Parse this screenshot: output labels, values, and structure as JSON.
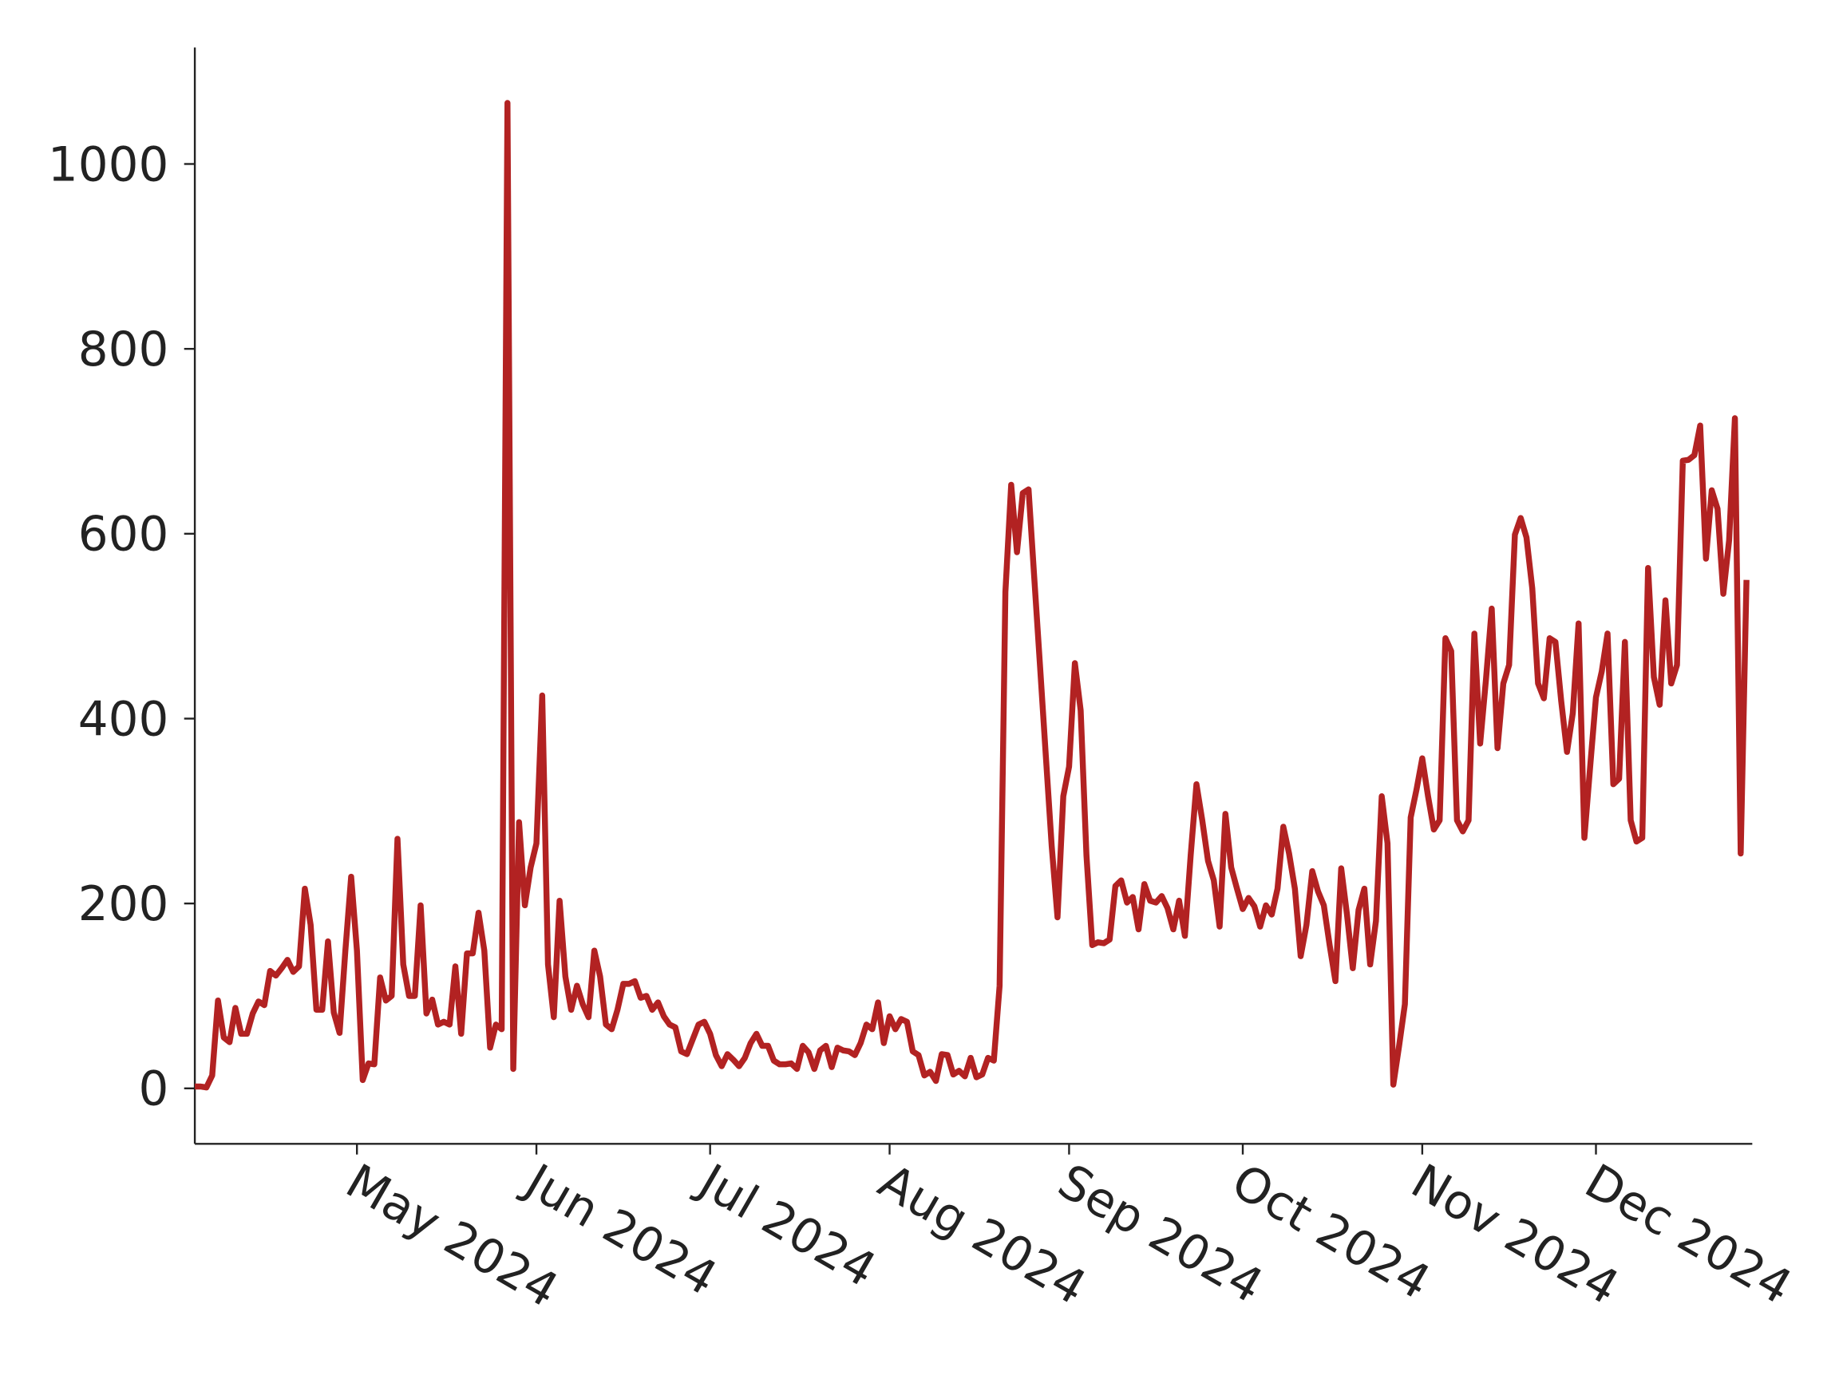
{
  "chart_data": {
    "type": "line",
    "x": [
      "2024-04-03",
      "2024-04-04",
      "2024-04-05",
      "2024-04-06",
      "2024-04-07",
      "2024-04-08",
      "2024-04-09",
      "2024-04-10",
      "2024-04-11",
      "2024-04-12",
      "2024-04-13",
      "2024-04-14",
      "2024-04-15",
      "2024-04-16",
      "2024-04-17",
      "2024-04-18",
      "2024-04-19",
      "2024-04-20",
      "2024-04-21",
      "2024-04-22",
      "2024-04-23",
      "2024-04-24",
      "2024-04-25",
      "2024-04-26",
      "2024-04-27",
      "2024-04-28",
      "2024-04-29",
      "2024-04-30",
      "2024-05-01",
      "2024-05-02",
      "2024-05-03",
      "2024-05-04",
      "2024-05-05",
      "2024-05-06",
      "2024-05-07",
      "2024-05-08",
      "2024-05-09",
      "2024-05-10",
      "2024-05-11",
      "2024-05-12",
      "2024-05-13",
      "2024-05-14",
      "2024-05-15",
      "2024-05-16",
      "2024-05-17",
      "2024-05-18",
      "2024-05-19",
      "2024-05-20",
      "2024-05-21",
      "2024-05-22",
      "2024-05-23",
      "2024-05-24",
      "2024-05-25",
      "2024-05-26",
      "2024-05-27",
      "2024-05-28",
      "2024-05-29",
      "2024-05-30",
      "2024-05-31",
      "2024-06-01",
      "2024-06-02",
      "2024-06-03",
      "2024-06-04",
      "2024-06-05",
      "2024-06-06",
      "2024-06-07",
      "2024-06-08",
      "2024-06-09",
      "2024-06-10",
      "2024-06-11",
      "2024-06-12",
      "2024-06-13",
      "2024-06-14",
      "2024-06-15",
      "2024-06-16",
      "2024-06-17",
      "2024-06-18",
      "2024-06-19",
      "2024-06-20",
      "2024-06-21",
      "2024-06-22",
      "2024-06-23",
      "2024-06-24",
      "2024-06-25",
      "2024-06-26",
      "2024-06-27",
      "2024-06-28",
      "2024-06-29",
      "2024-06-30",
      "2024-07-01",
      "2024-07-02",
      "2024-07-03",
      "2024-07-04",
      "2024-07-05",
      "2024-07-06",
      "2024-07-07",
      "2024-07-08",
      "2024-07-09",
      "2024-07-10",
      "2024-07-11",
      "2024-07-12",
      "2024-07-13",
      "2024-07-14",
      "2024-07-15",
      "2024-07-16",
      "2024-07-17",
      "2024-07-18",
      "2024-07-19",
      "2024-07-20",
      "2024-07-21",
      "2024-07-22",
      "2024-07-23",
      "2024-07-24",
      "2024-07-25",
      "2024-07-26",
      "2024-07-27",
      "2024-07-28",
      "2024-07-29",
      "2024-07-30",
      "2024-07-31",
      "2024-08-01",
      "2024-08-02",
      "2024-08-03",
      "2024-08-04",
      "2024-08-05",
      "2024-08-06",
      "2024-08-07",
      "2024-08-08",
      "2024-08-09",
      "2024-08-10",
      "2024-08-11",
      "2024-08-12",
      "2024-08-13",
      "2024-08-14",
      "2024-08-15",
      "2024-08-16",
      "2024-08-17",
      "2024-08-18",
      "2024-08-19",
      "2024-08-20",
      "2024-08-21",
      "2024-08-22",
      "2024-08-23",
      "2024-08-24",
      "2024-08-25",
      "2024-08-26",
      "2024-08-27",
      "2024-08-28",
      "2024-08-29",
      "2024-08-30",
      "2024-08-31",
      "2024-09-01",
      "2024-09-02",
      "2024-09-03",
      "2024-09-04",
      "2024-09-05",
      "2024-09-06",
      "2024-09-07",
      "2024-09-08",
      "2024-09-09",
      "2024-09-10",
      "2024-09-11",
      "2024-09-12",
      "2024-09-13",
      "2024-09-14",
      "2024-09-15",
      "2024-09-16",
      "2024-09-17",
      "2024-09-18",
      "2024-09-19",
      "2024-09-20",
      "2024-09-21",
      "2024-09-22",
      "2024-09-23",
      "2024-09-24",
      "2024-09-25",
      "2024-09-26",
      "2024-09-27",
      "2024-09-28",
      "2024-09-29",
      "2024-09-30",
      "2024-10-01",
      "2024-10-02",
      "2024-10-03",
      "2024-10-04",
      "2024-10-05",
      "2024-10-06",
      "2024-10-07",
      "2024-10-08",
      "2024-10-09",
      "2024-10-10",
      "2024-10-11",
      "2024-10-12",
      "2024-10-13",
      "2024-10-14",
      "2024-10-15",
      "2024-10-16",
      "2024-10-17",
      "2024-10-18",
      "2024-10-19",
      "2024-10-20",
      "2024-10-21",
      "2024-10-22",
      "2024-10-23",
      "2024-10-24",
      "2024-10-25",
      "2024-10-26",
      "2024-10-27",
      "2024-10-28",
      "2024-10-29",
      "2024-10-30",
      "2024-10-31",
      "2024-11-01",
      "2024-11-02",
      "2024-11-03",
      "2024-11-04",
      "2024-11-05",
      "2024-11-06",
      "2024-11-07",
      "2024-11-08",
      "2024-11-09",
      "2024-11-10",
      "2024-11-11",
      "2024-11-12",
      "2024-11-13",
      "2024-11-14",
      "2024-11-15",
      "2024-11-16",
      "2024-11-17",
      "2024-11-18",
      "2024-11-19",
      "2024-11-20",
      "2024-11-21",
      "2024-11-22",
      "2024-11-23",
      "2024-11-24",
      "2024-11-25",
      "2024-11-26",
      "2024-11-27",
      "2024-11-28",
      "2024-11-29",
      "2024-11-30",
      "2024-12-01",
      "2024-12-02",
      "2024-12-03",
      "2024-12-04",
      "2024-12-05",
      "2024-12-06",
      "2024-12-07",
      "2024-12-08",
      "2024-12-09",
      "2024-12-10",
      "2024-12-11",
      "2024-12-12",
      "2024-12-13",
      "2024-12-14",
      "2024-12-15",
      "2024-12-16",
      "2024-12-17",
      "2024-12-18",
      "2024-12-19",
      "2024-12-20",
      "2024-12-21",
      "2024-12-22",
      "2024-12-23",
      "2024-12-24",
      "2024-12-25",
      "2024-12-26",
      "2024-12-27"
    ],
    "series": [
      {
        "color": "#b22222",
        "values": [
          2,
          2,
          1,
          14,
          95,
          55,
          50,
          87,
          59,
          59,
          81,
          94,
          90,
          127,
          122,
          130,
          139,
          126,
          132,
          216,
          177,
          85,
          85,
          159,
          82,
          60,
          149,
          229,
          149,
          9,
          27,
          26,
          120,
          95,
          100,
          270,
          134,
          100,
          100,
          198,
          81,
          96,
          69,
          72,
          69,
          132,
          59,
          146,
          146,
          190,
          149,
          44,
          69,
          64,
          1066,
          21,
          288,
          198,
          239,
          265,
          425,
          134,
          77,
          203,
          121,
          85,
          111,
          91,
          77,
          149,
          121,
          69,
          64,
          85,
          113,
          113,
          116,
          98,
          100,
          85,
          93,
          78,
          69,
          66,
          40,
          37,
          53,
          69,
          72,
          59,
          36,
          24,
          37,
          31,
          24,
          33,
          49,
          59,
          46,
          46,
          30,
          26,
          26,
          27,
          21,
          46,
          39,
          21,
          41,
          46,
          23,
          44,
          41,
          40,
          36,
          49,
          69,
          64,
          93,
          49,
          78,
          64,
          75,
          72,
          40,
          36,
          14,
          18,
          8,
          37,
          36,
          15,
          19,
          13,
          33,
          12,
          15,
          33,
          30,
          111,
          537,
          653,
          580,
          644,
          648,
          551,
          455,
          358,
          262,
          185,
          316,
          348,
          460,
          409,
          252,
          155,
          158,
          157,
          161,
          219,
          225,
          201,
          207,
          172,
          221,
          203,
          201,
          208,
          195,
          172,
          203,
          165,
          252,
          329,
          290,
          246,
          225,
          175,
          297,
          239,
          216,
          194,
          206,
          197,
          175,
          198,
          188,
          216,
          283,
          254,
          216,
          143,
          177,
          235,
          213,
          198,
          155,
          116,
          238,
          188,
          130,
          193,
          216,
          134,
          181,
          316,
          265,
          4,
          46,
          91,
          293,
          323,
          357,
          316,
          280,
          290,
          487,
          473,
          290,
          278,
          290,
          492,
          373,
          442,
          519,
          368,
          438,
          458,
          599,
          617,
          596,
          541,
          438,
          422,
          487,
          483,
          419,
          364,
          406,
          503,
          271,
          348,
          423,
          451,
          492,
          329,
          335,
          483,
          290,
          267,
          271,
          563,
          445,
          415,
          528,
          438,
          458,
          679,
          680,
          685,
          717,
          573,
          647,
          627,
          535,
          593,
          725,
          254,
          550
        ]
      }
    ],
    "xlim": [
      "2024-04-03",
      "2024-12-28"
    ],
    "xticks": [
      {
        "value": "2024-05-01",
        "label": "May 2024"
      },
      {
        "value": "2024-06-01",
        "label": "Jun 2024"
      },
      {
        "value": "2024-07-01",
        "label": "Jul 2024"
      },
      {
        "value": "2024-08-01",
        "label": "Aug 2024"
      },
      {
        "value": "2024-09-01",
        "label": "Sep 2024"
      },
      {
        "value": "2024-10-01",
        "label": "Oct 2024"
      },
      {
        "value": "2024-11-01",
        "label": "Nov 2024"
      },
      {
        "value": "2024-12-01",
        "label": "Dec 2024"
      }
    ],
    "ylim": [
      -60,
      1126
    ],
    "yticks": [
      0,
      200,
      400,
      600,
      800,
      1000
    ]
  }
}
